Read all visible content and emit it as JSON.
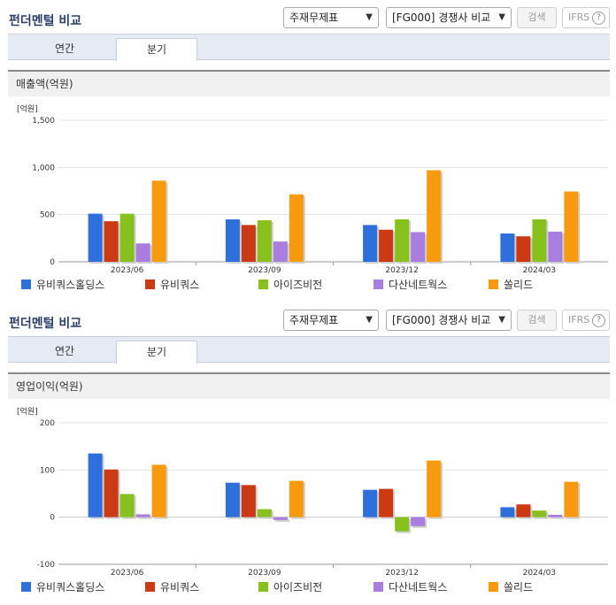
{
  "panels": [
    {
      "title": "펀더멘털 비교",
      "select_statement": "주재무제표",
      "select_compare": "[FG000] 경쟁사 비교",
      "search_label": "검색",
      "ifrs_label": "IFRS",
      "help_label": "?",
      "tabs": [
        {
          "label": "연간",
          "active": false
        },
        {
          "label": "분기",
          "active": true
        }
      ],
      "section_title": "매출액(억원)"
    },
    {
      "title": "펀더멘털 비교",
      "select_statement": "주재무제표",
      "select_compare": "[FG000] 경쟁사 비교",
      "search_label": "검색",
      "ifrs_label": "IFRS",
      "help_label": "?",
      "tabs": [
        {
          "label": "연간",
          "active": false
        },
        {
          "label": "분기",
          "active": true
        }
      ],
      "section_title": "영업이익(억원)"
    }
  ],
  "colors": {
    "series": [
      "#2f6fdc",
      "#cc3a14",
      "#88c11e",
      "#a97ee0",
      "#f79a0e"
    ]
  },
  "chart_data": [
    {
      "type": "bar",
      "unit_label": "[억원]",
      "categories": [
        "2023/06",
        "2023/09",
        "2023/12",
        "2024/03"
      ],
      "ylim": [
        0,
        1500
      ],
      "yticks": [
        0,
        500,
        1000,
        1500
      ],
      "ytick_labels": [
        "0",
        "500",
        "1,000",
        "1,500"
      ],
      "grid": true,
      "legend_position": "bottom",
      "series": [
        {
          "name": "유비쿼스홀딩스",
          "values": [
            510,
            450,
            390,
            300
          ]
        },
        {
          "name": "유비쿼스",
          "values": [
            430,
            390,
            340,
            270
          ]
        },
        {
          "name": "아이즈비전",
          "values": [
            510,
            440,
            450,
            450
          ]
        },
        {
          "name": "다산네트웍스",
          "values": [
            195,
            215,
            315,
            320
          ]
        },
        {
          "name": "쏠리드",
          "values": [
            860,
            715,
            970,
            745
          ]
        }
      ]
    },
    {
      "type": "bar",
      "unit_label": "[억원]",
      "categories": [
        "2023/06",
        "2023/09",
        "2023/12",
        "2024/03"
      ],
      "ylim": [
        -100,
        200
      ],
      "yticks": [
        -100,
        0,
        100,
        200
      ],
      "ytick_labels": [
        "-100",
        "0",
        "100",
        "200"
      ],
      "grid": true,
      "legend_position": "bottom",
      "series": [
        {
          "name": "유비쿼스홀딩스",
          "values": [
            135,
            73,
            58,
            21
          ]
        },
        {
          "name": "유비쿼스",
          "values": [
            101,
            68,
            60,
            27
          ]
        },
        {
          "name": "아이즈비전",
          "values": [
            49,
            17,
            -30,
            14
          ]
        },
        {
          "name": "다산네트웍스",
          "values": [
            6,
            -6,
            -19,
            5
          ]
        },
        {
          "name": "쏠리드",
          "values": [
            111,
            77,
            120,
            75
          ]
        }
      ]
    }
  ]
}
